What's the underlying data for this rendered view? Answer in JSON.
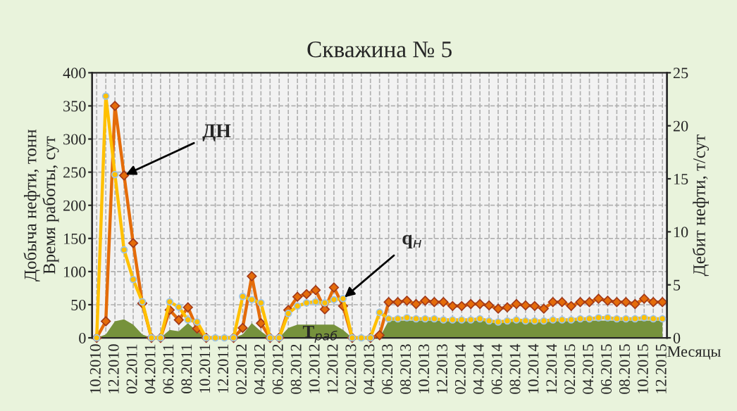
{
  "chart_data": {
    "type": "line",
    "title": "Скважина № 5",
    "xlabel": "Месяцы",
    "ylabel": "Добыча нефти, тонн\nВремя работы, сут",
    "y2label": "Дебит нефти, т/сут",
    "categories": [
      "10.2010",
      null,
      "12.2010",
      null,
      "02.2011",
      null,
      "04.2011",
      null,
      "06.2011",
      null,
      "08.2011",
      null,
      "10.2011",
      null,
      "12.2011",
      null,
      "02.2012",
      null,
      "04.2012",
      null,
      "06.2012",
      null,
      "08.2012",
      null,
      "10.2012",
      null,
      "12.2012",
      null,
      "02.2013",
      null,
      "04.2013",
      null,
      "06.2013",
      null,
      "08.2013",
      null,
      "10.2013",
      null,
      "12.2013",
      null,
      "02.2014",
      null,
      "04.2014",
      null,
      "06.2014",
      null,
      "08.2014",
      null,
      "10.2014",
      null,
      "12.2014",
      null,
      "02.2015",
      null,
      "04.2015",
      null,
      "06.2015",
      null,
      "08.2015",
      null,
      "10.2015",
      null,
      "12.2015"
    ],
    "series": [
      {
        "type": "area",
        "name": "T$_{раб}$",
        "color": "#76923c",
        "values": [
          0,
          5,
          25,
          28,
          20,
          5,
          0,
          0,
          12,
          10,
          22,
          10,
          0,
          0,
          0,
          0,
          5,
          22,
          10,
          0,
          0,
          15,
          20,
          20,
          20,
          20,
          20,
          12,
          0,
          0,
          0,
          0,
          26,
          26,
          26,
          26,
          26,
          26,
          26,
          26,
          26,
          26,
          26,
          26,
          26,
          26,
          26,
          26,
          26,
          26,
          26,
          26,
          26,
          26,
          26,
          26,
          26,
          26,
          26,
          26,
          26,
          26,
          26
        ]
      },
      {
        "name": "ДН",
        "color": "#e46c0a",
        "marker": "diamond",
        "values": [
          0,
          25,
          350,
          245,
          143,
          52,
          0,
          0,
          42,
          27,
          46,
          14,
          0,
          null,
          null,
          0,
          15,
          93,
          22,
          0,
          0,
          42,
          62,
          66,
          72,
          43,
          76,
          48,
          0,
          null,
          0,
          4,
          54,
          54,
          56,
          51,
          56,
          54,
          54,
          48,
          48,
          51,
          51,
          49,
          44,
          46,
          51,
          49,
          48,
          44,
          54,
          54,
          48,
          54,
          54,
          59,
          56,
          54,
          54,
          51,
          59,
          54,
          54
        ]
      },
      {
        "name": "q$_{н}$",
        "color": "#ffc000",
        "marker": "circle",
        "axis": "y2",
        "values": [
          0,
          22.8,
          15.4,
          8.3,
          5.5,
          3.4,
          0,
          0,
          3.4,
          2.9,
          1.7,
          1.5,
          0,
          0,
          0,
          0,
          3.9,
          3.6,
          3.3,
          0,
          0,
          2.3,
          3.0,
          3.3,
          3.4,
          3.3,
          3.6,
          3.7,
          0,
          0,
          0,
          2.4,
          1.8,
          1.8,
          1.9,
          1.8,
          1.8,
          1.8,
          1.7,
          1.7,
          1.7,
          1.7,
          1.8,
          1.6,
          1.5,
          1.6,
          1.7,
          1.6,
          1.6,
          1.6,
          1.7,
          1.7,
          1.7,
          1.8,
          1.8,
          1.9,
          1.9,
          1.8,
          1.8,
          1.8,
          1.9,
          1.8,
          1.8
        ]
      }
    ],
    "ylim": [
      0,
      400
    ],
    "yticks": [
      0,
      50,
      100,
      150,
      200,
      250,
      300,
      350,
      400
    ],
    "y2lim": [
      0,
      25
    ],
    "y2ticks": [
      0,
      5,
      10,
      15,
      20,
      25
    ],
    "grid": true,
    "legend": false,
    "line_style": "solid"
  }
}
